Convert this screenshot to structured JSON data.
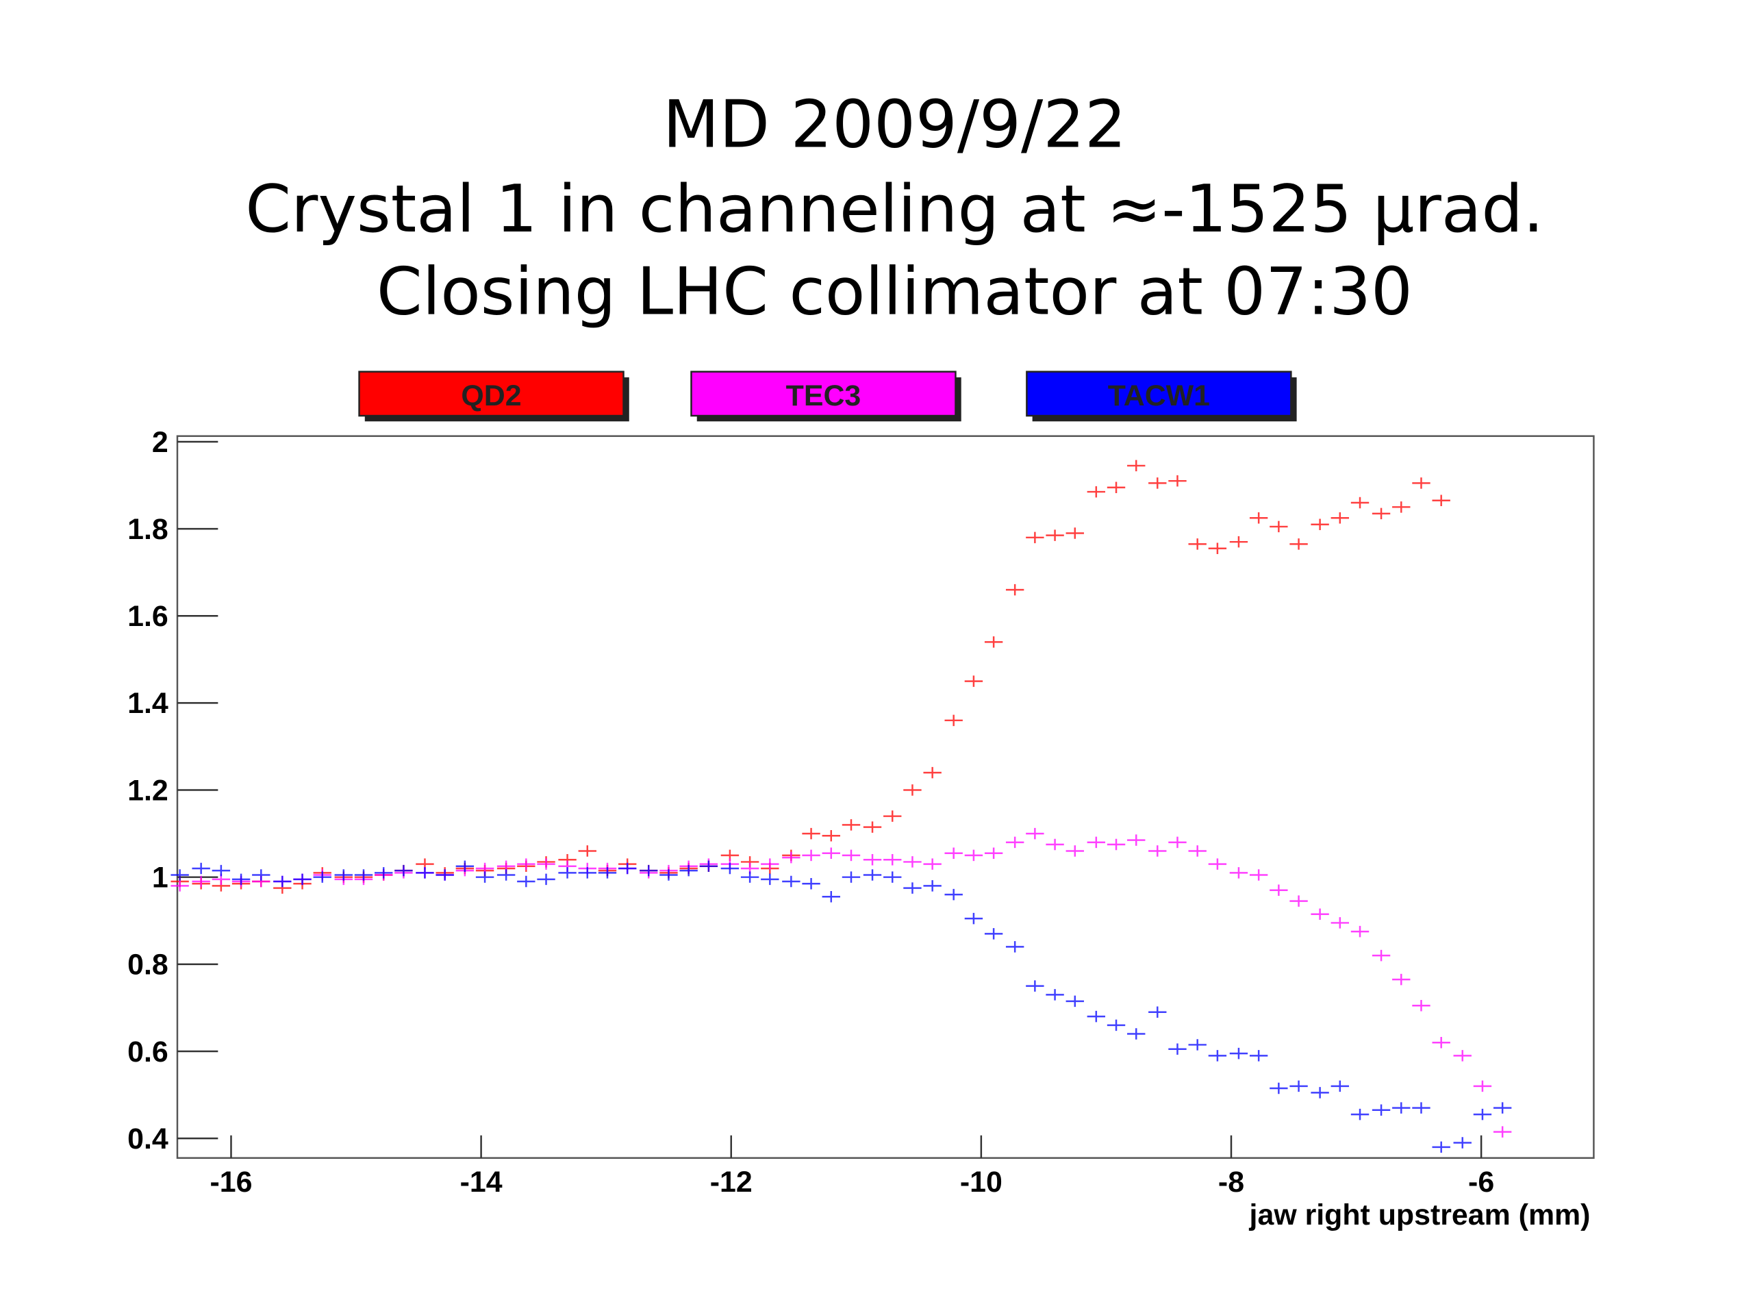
{
  "chart_data": {
    "type": "scatter",
    "title": [
      "MD 2009/9/22",
      "Crystal 1 in channeling at ≈-1525 μrad.",
      "Closing LHC collimator at 07:30"
    ],
    "x": [
      -16.41,
      -16.24,
      -16.08,
      -15.92,
      -15.76,
      -15.59,
      -15.43,
      -15.27,
      -15.1,
      -14.94,
      -14.78,
      -14.62,
      -14.45,
      -14.29,
      -14.13,
      -13.97,
      -13.8,
      -13.64,
      -13.48,
      -13.31,
      -13.15,
      -12.99,
      -12.83,
      -12.66,
      -12.5,
      -12.34,
      -12.18,
      -12.01,
      -11.85,
      -11.69,
      -11.52,
      -11.36,
      -11.2,
      -11.04,
      -10.87,
      -10.71,
      -10.55,
      -10.39,
      -10.22,
      -10.06,
      -9.9,
      -9.73,
      -9.57,
      -9.41,
      -9.25,
      -9.08,
      -8.92,
      -8.76,
      -8.59,
      -8.43,
      -8.27,
      -8.11,
      -7.94,
      -7.78,
      -7.62,
      -7.46,
      -7.29,
      -7.13,
      -6.97,
      -6.8,
      -6.64,
      -6.48,
      -6.32,
      -6.15,
      -5.99,
      -5.83
    ],
    "series": [
      {
        "name": "QD2",
        "color": "#ff0000",
        "values": [
          0.99,
          0.985,
          0.98,
          0.985,
          0.99,
          0.975,
          0.985,
          1.01,
          1.0,
          1.0,
          1.005,
          1.015,
          1.03,
          1.01,
          1.02,
          1.015,
          1.02,
          1.025,
          1.035,
          1.04,
          1.06,
          1.015,
          1.03,
          1.015,
          1.01,
          1.02,
          1.025,
          1.05,
          1.035,
          1.02,
          1.05,
          1.1,
          1.095,
          1.12,
          1.115,
          1.14,
          1.2,
          1.24,
          1.36,
          1.45,
          1.54,
          1.66,
          1.78,
          1.785,
          1.79,
          1.885,
          1.895,
          1.945,
          1.905,
          1.91,
          1.765,
          1.755,
          1.77,
          1.825,
          1.805,
          1.765,
          1.81,
          1.825,
          1.86,
          1.835,
          1.85,
          1.905,
          1.865,
          null,
          null,
          null
        ]
      },
      {
        "name": "TEC3",
        "color": "#ff00ff",
        "values": [
          0.98,
          0.99,
          0.995,
          0.99,
          0.99,
          0.99,
          0.995,
          1.005,
          0.995,
          0.995,
          1.005,
          1.01,
          1.01,
          1.005,
          1.015,
          1.02,
          1.025,
          1.03,
          1.03,
          1.025,
          1.02,
          1.02,
          1.02,
          1.01,
          1.015,
          1.025,
          1.03,
          1.03,
          1.02,
          1.03,
          1.045,
          1.05,
          1.055,
          1.05,
          1.04,
          1.04,
          1.035,
          1.03,
          1.055,
          1.05,
          1.055,
          1.08,
          1.1,
          1.075,
          1.06,
          1.08,
          1.075,
          1.085,
          1.06,
          1.08,
          1.06,
          1.03,
          1.01,
          1.005,
          0.97,
          0.945,
          0.915,
          0.895,
          0.875,
          0.82,
          0.765,
          0.705,
          0.62,
          0.59,
          0.52,
          0.415
        ]
      },
      {
        "name": "TACW1",
        "color": "#0000ff",
        "values": [
          1.005,
          1.02,
          1.015,
          0.995,
          1.005,
          0.99,
          0.995,
          1.0,
          1.005,
          1.005,
          1.01,
          1.015,
          1.01,
          1.005,
          1.025,
          1.0,
          1.005,
          0.99,
          0.995,
          1.01,
          1.01,
          1.01,
          1.02,
          1.015,
          1.005,
          1.015,
          1.025,
          1.02,
          1.0,
          0.995,
          0.99,
          0.985,
          0.955,
          1.0,
          1.005,
          1.0,
          0.975,
          0.98,
          0.96,
          0.905,
          0.87,
          0.84,
          0.75,
          0.73,
          0.715,
          0.68,
          0.66,
          0.64,
          0.69,
          0.605,
          0.615,
          0.59,
          0.595,
          0.59,
          0.515,
          0.52,
          0.505,
          0.52,
          0.455,
          0.465,
          0.47,
          0.47,
          0.38,
          0.39,
          0.455,
          0.47
        ]
      }
    ],
    "xlim": [
      -16.43,
      -5.1
    ],
    "ylim": [
      0.355,
      2.013
    ],
    "xticks": [
      -16,
      -14,
      -12,
      -10,
      -8,
      -6
    ],
    "yticks": [
      0.4,
      0.6,
      0.8,
      1,
      1.2,
      1.4,
      1.6,
      1.8,
      2
    ],
    "xlabel": "jaw right upstream (mm)",
    "legend": "top"
  }
}
